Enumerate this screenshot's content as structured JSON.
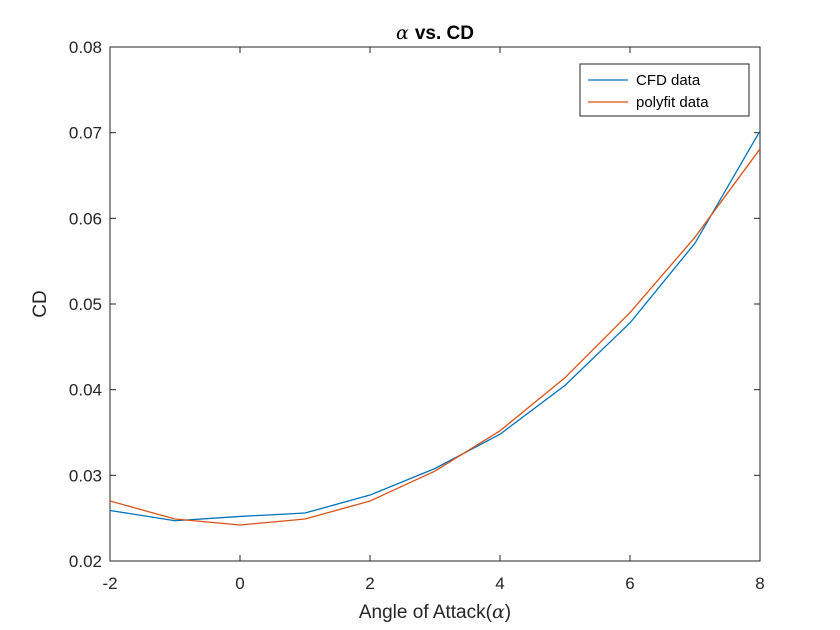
{
  "chart_data": {
    "type": "line",
    "title_symbol": "α",
    "title_text": "vs. CD",
    "xlabel_text": "Angle of Attack(",
    "xlabel_symbol": "α",
    "xlabel_close": ")",
    "ylabel": "CD",
    "xlim": [
      -2,
      8
    ],
    "ylim": [
      0.02,
      0.08
    ],
    "x_ticks": [
      -2,
      0,
      2,
      4,
      6,
      8
    ],
    "x_tick_labels": [
      "-2",
      "0",
      "2",
      "4",
      "6",
      "8"
    ],
    "y_ticks": [
      0.02,
      0.03,
      0.04,
      0.05,
      0.06,
      0.07,
      0.08
    ],
    "y_tick_labels": [
      "0.02",
      "0.03",
      "0.04",
      "0.05",
      "0.06",
      "0.07",
      "0.08"
    ],
    "grid": false,
    "legend_position": "top-right",
    "x": [
      -2,
      -1,
      0,
      1,
      2,
      3,
      4,
      5,
      6,
      7,
      8
    ],
    "series": [
      {
        "name": "CFD data",
        "color": "#0072BD",
        "values": [
          0.0259,
          0.0247,
          0.0252,
          0.0256,
          0.0277,
          0.0308,
          0.0348,
          0.0405,
          0.0478,
          0.0571,
          0.0702
        ]
      },
      {
        "name": "polyfit data",
        "color": "#D95319",
        "values": [
          0.027,
          0.0249,
          0.0242,
          0.0249,
          0.027,
          0.0305,
          0.0352,
          0.0414,
          0.049,
          0.0578,
          0.0681
        ]
      }
    ]
  }
}
